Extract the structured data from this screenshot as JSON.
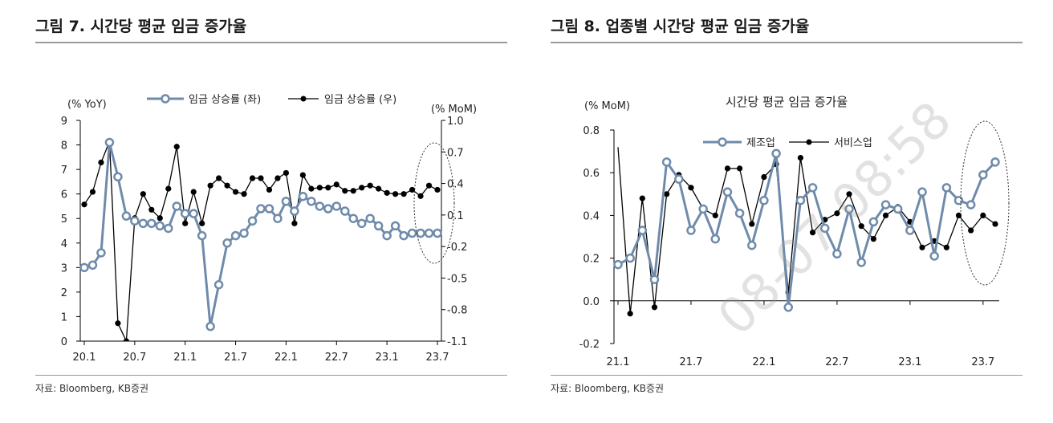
{
  "watermark": "08-07 08:58",
  "charts": [
    {
      "figure_title": "그림 7. 시간당 평균 임금 증가율",
      "source": "자료: Bloomberg, KB증권"
    },
    {
      "figure_title": "그림 8. 업종별 시간당 평균 임금 증가율",
      "source": "자료: Bloomberg, KB증권"
    }
  ],
  "chart_data": [
    {
      "type": "line",
      "title": "",
      "left_axis_label": "(% YoY)",
      "right_axis_label": "(% MoM)",
      "x_tick_labels": [
        "20.1",
        "20.7",
        "21.1",
        "21.7",
        "22.1",
        "22.7",
        "23.1",
        "23.7"
      ],
      "x_tick_indices": [
        0,
        6,
        12,
        18,
        24,
        30,
        36,
        42
      ],
      "ylim_left": [
        0,
        9
      ],
      "yticks_left": [
        0,
        1,
        2,
        3,
        4,
        5,
        6,
        7,
        8,
        9
      ],
      "ylim_right": [
        -1.1,
        1.0
      ],
      "yticks_right": [
        "1.0",
        "0.7",
        "0.4",
        "0.1",
        "-0.2",
        "-0.5",
        "-0.8",
        "-1.1"
      ],
      "legend_position": "top",
      "highlight_ellipse": true,
      "colors": {
        "left_series": "#6f8bab",
        "right_series": "#000000"
      },
      "series": [
        {
          "name": "임금 상승률 (좌)",
          "axis": "left",
          "values": [
            3.0,
            3.1,
            3.6,
            8.1,
            6.7,
            5.1,
            4.9,
            4.8,
            4.8,
            4.7,
            4.6,
            5.5,
            5.2,
            5.2,
            4.3,
            0.6,
            2.3,
            4.0,
            4.3,
            4.4,
            4.9,
            5.4,
            5.4,
            5.0,
            5.7,
            5.3,
            5.9,
            5.7,
            5.5,
            5.4,
            5.5,
            5.3,
            5.0,
            4.8,
            5.0,
            4.7,
            4.3,
            4.7,
            4.3,
            4.4,
            4.4,
            4.4,
            4.4
          ]
        },
        {
          "name": "임금 상승률 (우)",
          "axis": "right",
          "values": [
            0.2,
            0.32,
            0.6,
            0.8,
            -0.93,
            -1.1,
            0.07,
            0.3,
            0.15,
            0.07,
            0.35,
            0.75,
            0.02,
            0.32,
            0.02,
            0.38,
            0.45,
            0.38,
            0.32,
            0.3,
            0.45,
            0.45,
            0.34,
            0.45,
            0.5,
            0.02,
            0.48,
            0.35,
            0.36,
            0.36,
            0.39,
            0.33,
            0.33,
            0.36,
            0.38,
            0.35,
            0.31,
            0.3,
            0.3,
            0.34,
            0.28,
            0.38,
            0.34
          ]
        }
      ]
    },
    {
      "type": "line",
      "title": "시간당 평균 임금 증가율",
      "ylabel": "(% MoM)",
      "x_tick_labels": [
        "21.1",
        "21.7",
        "22.1",
        "22.7",
        "23.1",
        "23.7"
      ],
      "x_tick_indices": [
        0,
        6,
        12,
        18,
        24,
        30
      ],
      "ylim": [
        -0.2,
        0.8
      ],
      "yticks": [
        "0.8",
        "0.6",
        "0.4",
        "0.2",
        "0.0",
        "-0.2"
      ],
      "legend_position": "top",
      "highlight_ellipse": true,
      "colors": {
        "manufacturing": "#6f8bab",
        "services": "#000000"
      },
      "series": [
        {
          "name": "제조업",
          "values": [
            0.17,
            0.2,
            0.33,
            0.1,
            0.65,
            0.57,
            0.33,
            0.43,
            0.29,
            0.51,
            0.41,
            0.26,
            0.47,
            0.69,
            -0.03,
            0.47,
            0.53,
            0.34,
            0.22,
            0.43,
            0.18,
            0.37,
            0.45,
            0.43,
            0.33,
            0.51,
            0.21,
            0.53,
            0.47,
            0.45,
            0.59,
            0.65
          ]
        },
        {
          "name": "서비스업",
          "values": [
            0.72,
            -0.06,
            0.48,
            -0.03,
            0.5,
            0.59,
            0.53,
            0.43,
            0.4,
            0.62,
            0.62,
            0.36,
            0.58,
            0.64,
            0.04,
            0.67,
            0.32,
            0.38,
            0.41,
            0.5,
            0.35,
            0.29,
            0.4,
            0.44,
            0.37,
            0.25,
            0.28,
            0.25,
            0.4,
            0.33,
            0.4,
            0.36
          ]
        }
      ]
    }
  ]
}
